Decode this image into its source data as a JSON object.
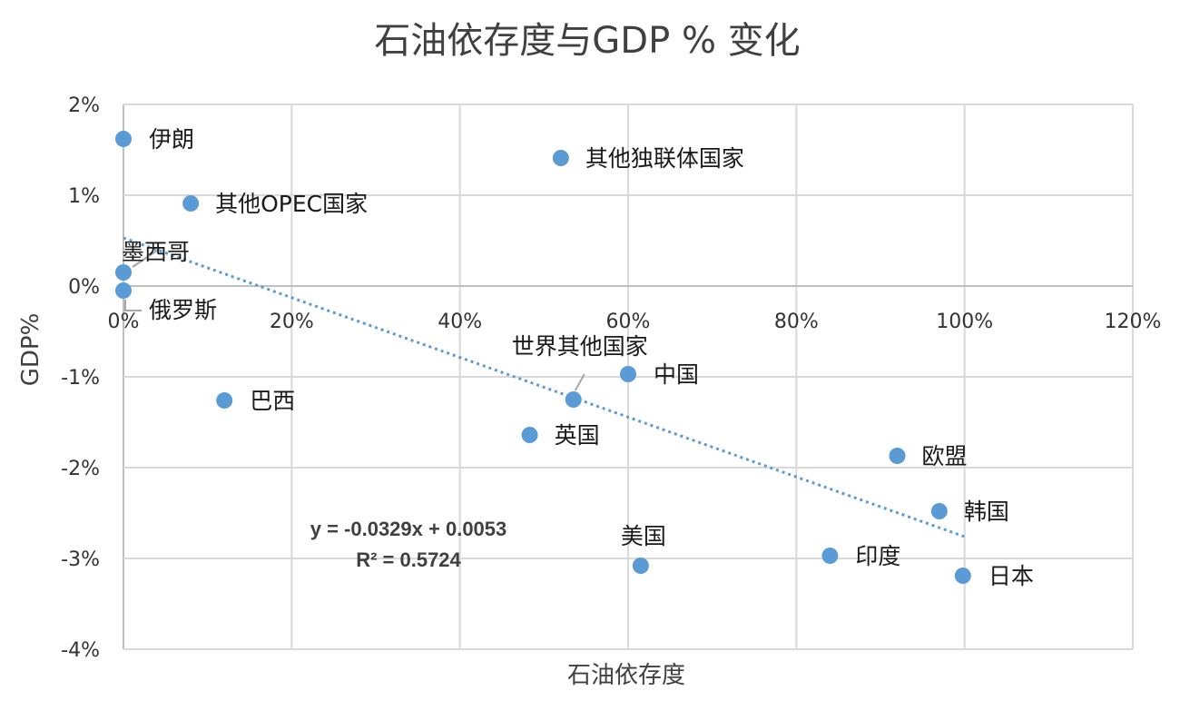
{
  "chart_data": {
    "type": "scatter",
    "title": "石油依存度与GDP % 变化",
    "xlabel": "石油依存度",
    "ylabel": "GDP%",
    "xlim": [
      0,
      1.2
    ],
    "ylim": [
      -0.04,
      0.02
    ],
    "x_ticks": [
      "0%",
      "20%",
      "40%",
      "60%",
      "80%",
      "100%",
      "120%"
    ],
    "y_ticks": [
      "2%",
      "1%",
      "0%",
      "-1%",
      "-2%",
      "-3%",
      "-4%"
    ],
    "grid": true,
    "series_color": "#5b9bd5",
    "points": [
      {
        "label": "伊朗",
        "x": 0.0,
        "y": 0.0162
      },
      {
        "label": "其他OPEC国家",
        "x": 0.08,
        "y": 0.0091
      },
      {
        "label": "墨西哥",
        "x": 0.0,
        "y": 0.0015
      },
      {
        "label": "俄罗斯",
        "x": 0.0,
        "y": -0.0005
      },
      {
        "label": "其他独联体国家",
        "x": 0.52,
        "y": 0.0141
      },
      {
        "label": "巴西",
        "x": 0.12,
        "y": -0.0126
      },
      {
        "label": "世界其他国家",
        "x": 0.535,
        "y": -0.0125
      },
      {
        "label": "中国",
        "x": 0.6,
        "y": -0.0097
      },
      {
        "label": "英国",
        "x": 0.483,
        "y": -0.0164
      },
      {
        "label": "欧盟",
        "x": 0.92,
        "y": -0.0187
      },
      {
        "label": "韩国",
        "x": 0.97,
        "y": -0.0248
      },
      {
        "label": "美国",
        "x": 0.615,
        "y": -0.0308
      },
      {
        "label": "印度",
        "x": 0.84,
        "y": -0.0297
      },
      {
        "label": "日本",
        "x": 0.998,
        "y": -0.0319
      }
    ],
    "trendline": {
      "style": "dotted",
      "x_range": [
        0.0,
        1.0
      ],
      "equation": "y = -0.0329x + 0.0053",
      "r_squared": "R² = 0.5724"
    }
  }
}
